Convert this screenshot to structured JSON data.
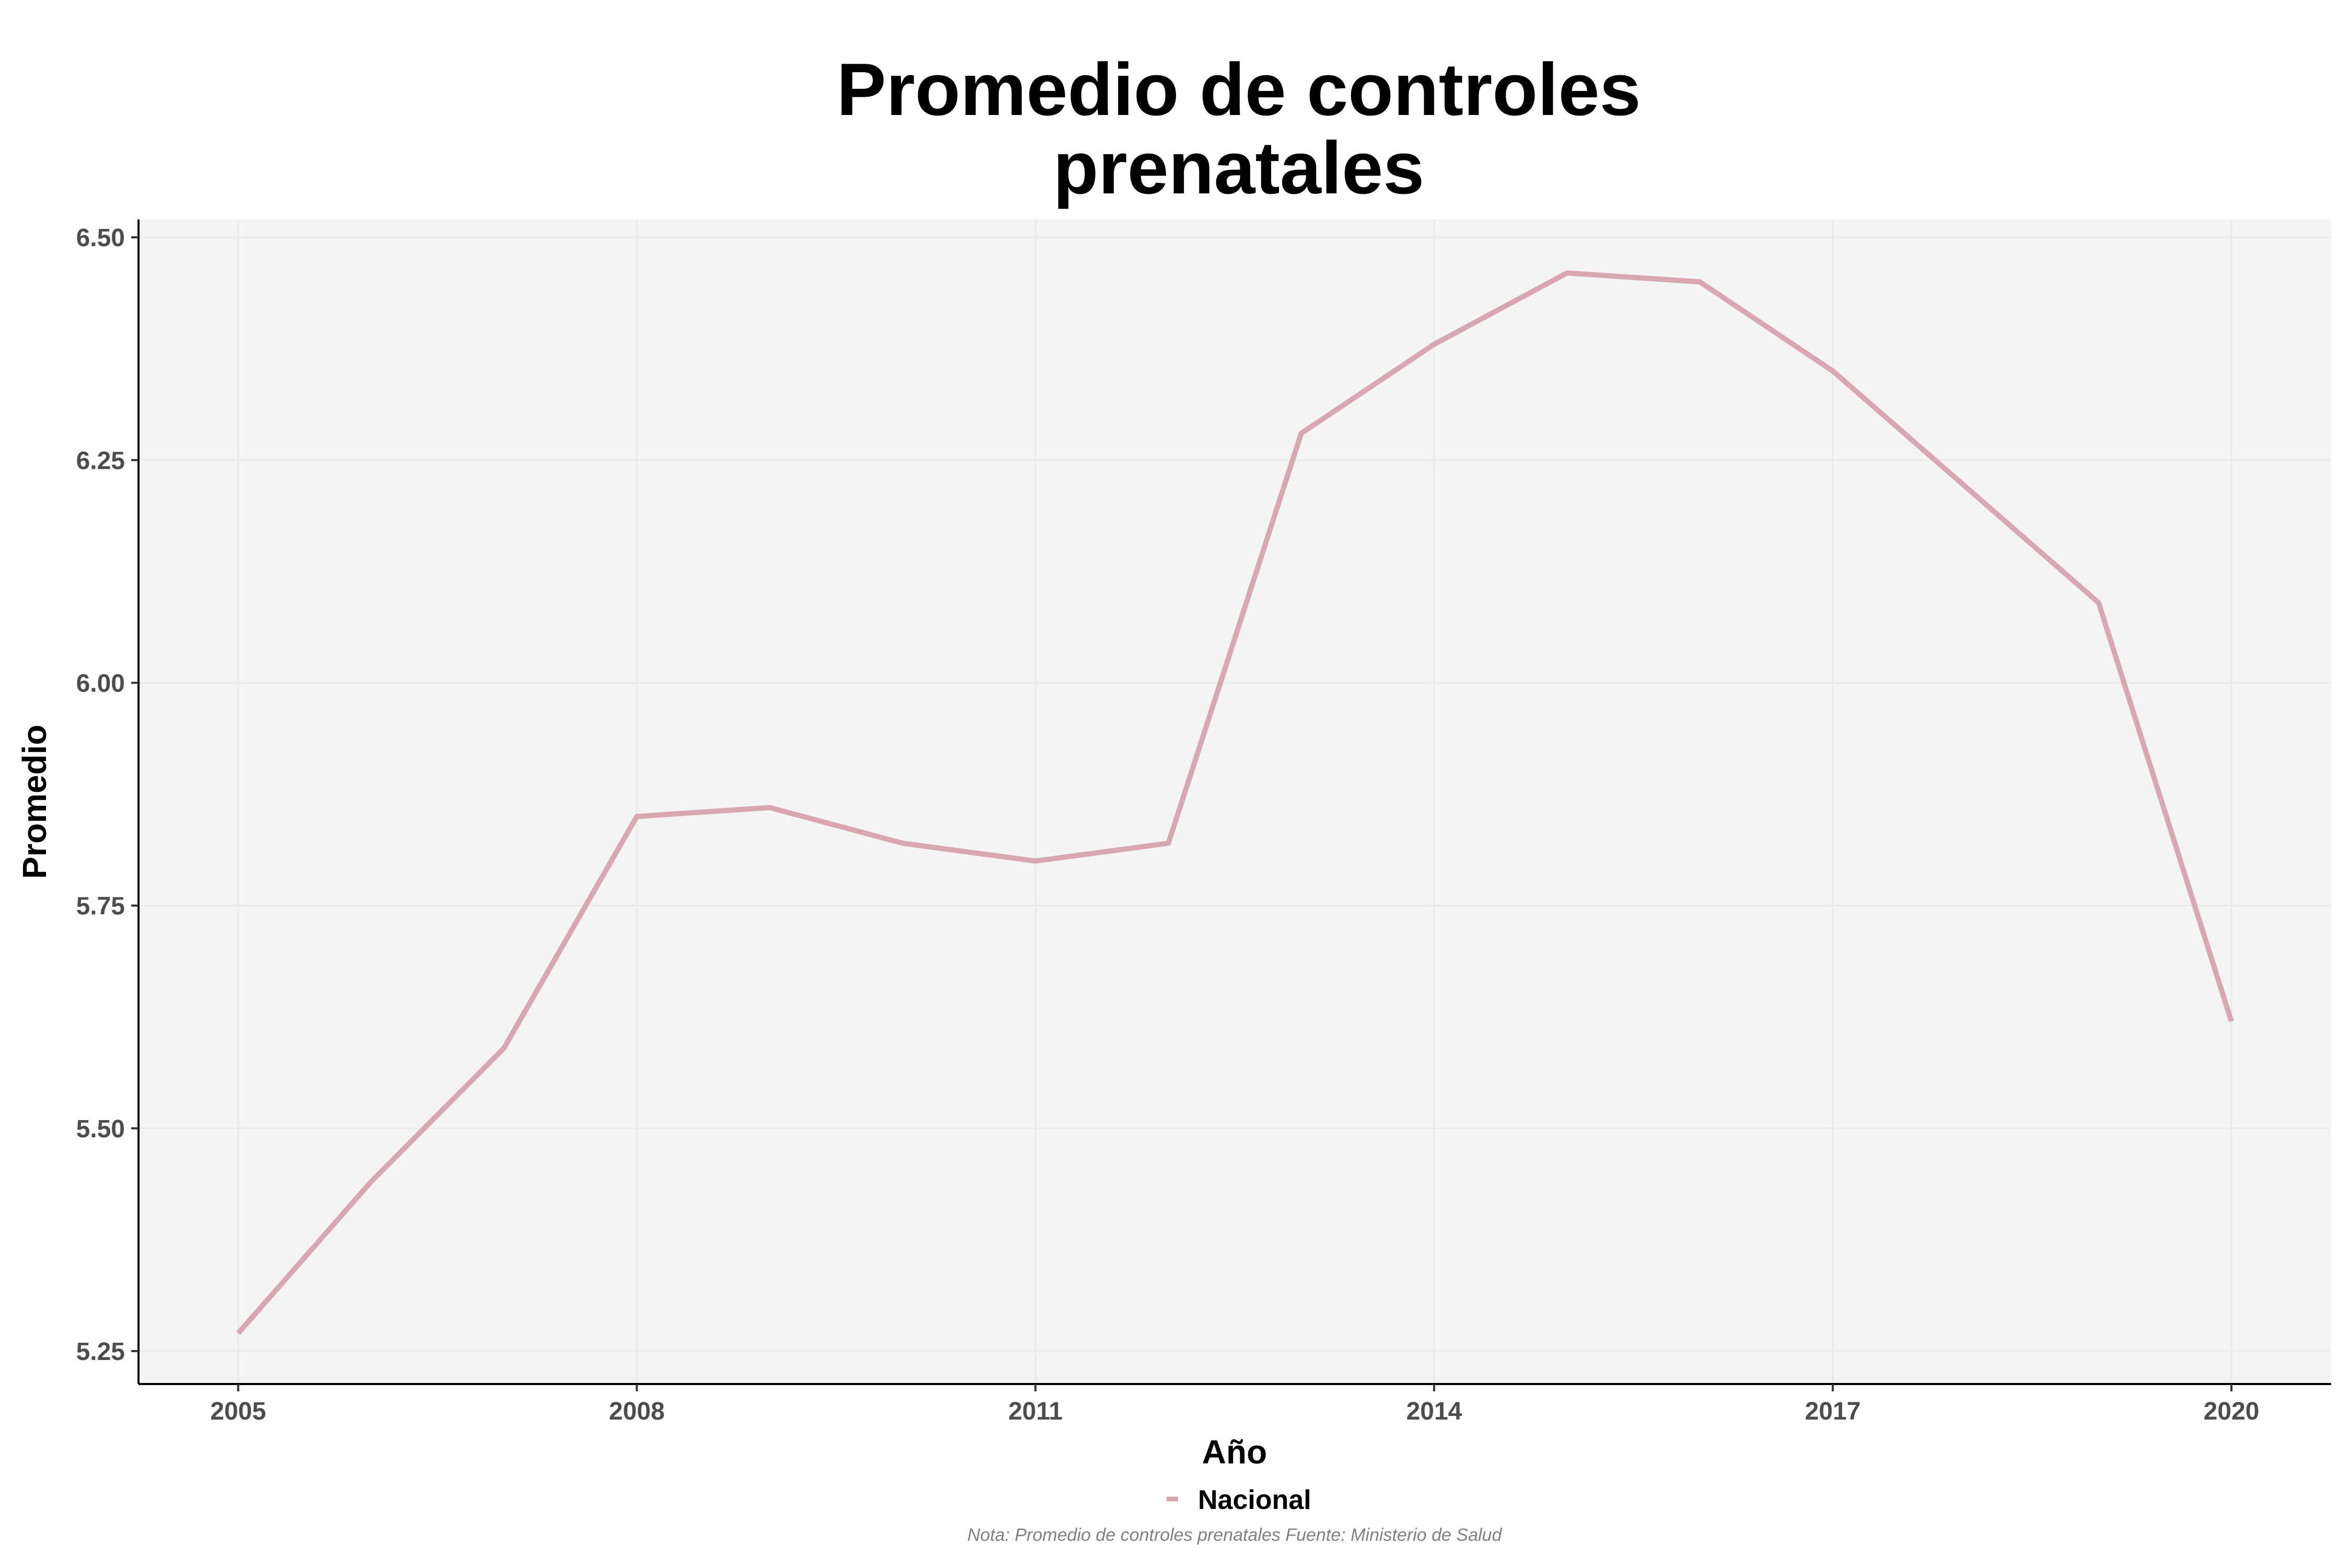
{
  "chart_data": {
    "type": "line",
    "title_lines": [
      "Promedio de controles",
      "prenatales"
    ],
    "xlabel": "Año",
    "ylabel": "Promedio",
    "x": [
      2005,
      2006,
      2007,
      2008,
      2009,
      2010,
      2011,
      2012,
      2013,
      2014,
      2015,
      2016,
      2017,
      2018,
      2019,
      2020
    ],
    "series": [
      {
        "name": "Nacional",
        "values": [
          5.27,
          5.44,
          5.59,
          5.85,
          5.86,
          5.82,
          5.8,
          5.82,
          6.28,
          6.38,
          6.46,
          6.45,
          6.35,
          6.22,
          6.09,
          5.62
        ],
        "color": "#d8a7b1"
      }
    ],
    "x_ticks": [
      "2005",
      "2008",
      "2011",
      "2014",
      "2017",
      "2020"
    ],
    "y_ticks": [
      "5.25",
      "5.50",
      "5.75",
      "6.00",
      "6.25",
      "6.50"
    ],
    "xlim": [
      2004.25,
      2020.75
    ],
    "ylim": [
      5.213,
      6.52
    ],
    "grid": true,
    "legend_position": "bottom",
    "panel_background": "#f4f4f4",
    "note": "Nota: Promedio de controles prenatales Fuente: Ministerio de Salud"
  }
}
